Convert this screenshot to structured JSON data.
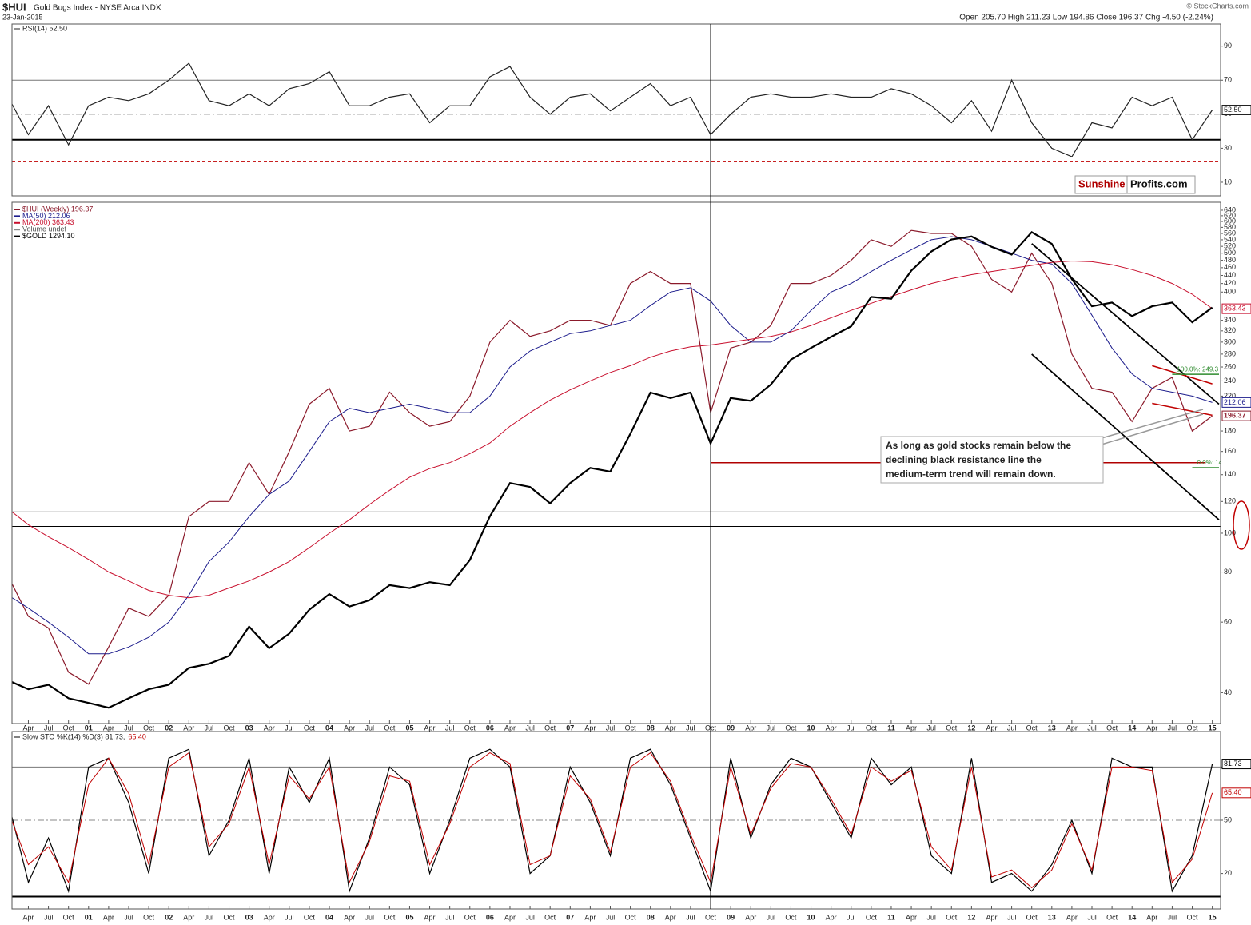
{
  "header": {
    "title": "$HUI",
    "subtitle": "Gold Bugs Index - NYSE Arca INDX",
    "date": "23-Jan-2015",
    "ohlc": "Open 205.70 High 211.23 Low 194.86 Close 196.37 Chg -4.50 (-2.24%)",
    "credit": "© StockCharts.com",
    "logo": [
      "Sunshine",
      "Profits.com"
    ],
    "note": [
      "As long as gold stocks remain below the",
      "declining black resistance line the",
      "medium-term trend will remain down."
    ]
  },
  "chart_data": [
    {
      "type": "line",
      "ylim": [
        2,
        103
      ],
      "yticks": [
        10,
        30,
        50,
        70,
        90
      ],
      "hlines": [
        {
          "value": 70,
          "color": "#777777",
          "style": "solid"
        },
        {
          "value": 50,
          "color": "#888888",
          "style": "dashdot"
        },
        {
          "value": 35,
          "color": "#000000",
          "style": "thick"
        },
        {
          "value": 22,
          "color": "#c00000",
          "style": "dashed"
        }
      ],
      "series": [
        {
          "name": "RSI(14) 52.50",
          "color": "#222222",
          "end_label": "52.50",
          "values": [
            60,
            38,
            55,
            32,
            55,
            60,
            58,
            62,
            70,
            80,
            58,
            55,
            62,
            55,
            65,
            68,
            75,
            55,
            55,
            60,
            62,
            45,
            55,
            55,
            72,
            78,
            60,
            50,
            60,
            62,
            52,
            60,
            68,
            55,
            60,
            38,
            50,
            60,
            62,
            60,
            60,
            62,
            60,
            60,
            65,
            62,
            55,
            45,
            58,
            40,
            70,
            45,
            30,
            25,
            45,
            42,
            60,
            55,
            60,
            35,
            52.5
          ]
        }
      ]
    },
    {
      "type": "line",
      "log": true,
      "ylim": [
        33.5,
        670
      ],
      "y2lim": [
        244,
        1973
      ],
      "xlim": [
        "1999-12",
        "2015-02"
      ],
      "vline": "2008-10",
      "yticks": [
        40,
        60,
        80,
        100,
        120,
        140,
        160,
        180,
        220,
        240,
        260,
        280,
        300,
        320,
        340,
        400,
        420,
        440,
        460,
        480,
        500,
        520,
        540,
        560,
        580,
        600,
        620,
        640
      ],
      "x": [
        "2000-01",
        "2000-04",
        "2000-07",
        "2000-10",
        "2001-01",
        "2001-04",
        "2001-07",
        "2001-10",
        "2002-01",
        "2002-04",
        "2002-07",
        "2002-10",
        "2003-01",
        "2003-04",
        "2003-07",
        "2003-10",
        "2004-01",
        "2004-04",
        "2004-07",
        "2004-10",
        "2005-01",
        "2005-04",
        "2005-07",
        "2005-10",
        "2006-01",
        "2006-04",
        "2006-07",
        "2006-10",
        "2007-01",
        "2007-04",
        "2007-07",
        "2007-10",
        "2008-01",
        "2008-04",
        "2008-07",
        "2008-10",
        "2009-01",
        "2009-04",
        "2009-07",
        "2009-10",
        "2010-01",
        "2010-04",
        "2010-07",
        "2010-10",
        "2011-01",
        "2011-04",
        "2011-07",
        "2011-10",
        "2012-01",
        "2012-04",
        "2012-07",
        "2012-10",
        "2013-01",
        "2013-04",
        "2013-07",
        "2013-10",
        "2014-01",
        "2014-04",
        "2014-07",
        "2014-10",
        "2015-01"
      ],
      "xticks": [
        {
          "value": "2000-04",
          "label": "Apr"
        },
        {
          "value": "2000-07",
          "label": "Jul"
        },
        {
          "value": "2000-10",
          "label": "Oct"
        },
        {
          "value": "2001-01",
          "label": "01"
        },
        {
          "value": "2001-04",
          "label": "Apr"
        },
        {
          "value": "2001-07",
          "label": "Jul"
        },
        {
          "value": "2001-10",
          "label": "Oct"
        },
        {
          "value": "2002-01",
          "label": "02"
        },
        {
          "value": "2002-04",
          "label": "Apr"
        },
        {
          "value": "2002-07",
          "label": "Jul"
        },
        {
          "value": "2002-10",
          "label": "Oct"
        },
        {
          "value": "2003-01",
          "label": "03"
        },
        {
          "value": "2003-04",
          "label": "Apr"
        },
        {
          "value": "2003-07",
          "label": "Jul"
        },
        {
          "value": "2003-10",
          "label": "Oct"
        },
        {
          "value": "2004-01",
          "label": "04"
        },
        {
          "value": "2004-04",
          "label": "Apr"
        },
        {
          "value": "2004-07",
          "label": "Jul"
        },
        {
          "value": "2004-10",
          "label": "Oct"
        },
        {
          "value": "2005-01",
          "label": "05"
        },
        {
          "value": "2005-04",
          "label": "Apr"
        },
        {
          "value": "2005-07",
          "label": "Jul"
        },
        {
          "value": "2005-10",
          "label": "Oct"
        },
        {
          "value": "2006-01",
          "label": "06"
        },
        {
          "value": "2006-04",
          "label": "Apr"
        },
        {
          "value": "2006-07",
          "label": "Jul"
        },
        {
          "value": "2006-10",
          "label": "Oct"
        },
        {
          "value": "2007-01",
          "label": "07"
        },
        {
          "value": "2007-04",
          "label": "Apr"
        },
        {
          "value": "2007-07",
          "label": "Jul"
        },
        {
          "value": "2007-10",
          "label": "Oct"
        },
        {
          "value": "2008-01",
          "label": "08"
        },
        {
          "value": "2008-04",
          "label": "Apr"
        },
        {
          "value": "2008-07",
          "label": "Jul"
        },
        {
          "value": "2008-10",
          "label": "Oct"
        },
        {
          "value": "2009-01",
          "label": "09"
        },
        {
          "value": "2009-04",
          "label": "Apr"
        },
        {
          "value": "2009-07",
          "label": "Jul"
        },
        {
          "value": "2009-10",
          "label": "Oct"
        },
        {
          "value": "2010-01",
          "label": "10"
        },
        {
          "value": "2010-04",
          "label": "Apr"
        },
        {
          "value": "2010-07",
          "label": "Jul"
        },
        {
          "value": "2010-10",
          "label": "Oct"
        },
        {
          "value": "2011-01",
          "label": "11"
        },
        {
          "value": "2011-04",
          "label": "Apr"
        },
        {
          "value": "2011-07",
          "label": "Jul"
        },
        {
          "value": "2011-10",
          "label": "Oct"
        },
        {
          "value": "2012-01",
          "label": "12"
        },
        {
          "value": "2012-04",
          "label": "Apr"
        },
        {
          "value": "2012-07",
          "label": "Jul"
        },
        {
          "value": "2012-10",
          "label": "Oct"
        },
        {
          "value": "2013-01",
          "label": "13"
        },
        {
          "value": "2013-04",
          "label": "Apr"
        },
        {
          "value": "2013-07",
          "label": "Jul"
        },
        {
          "value": "2013-10",
          "label": "Oct"
        },
        {
          "value": "2014-01",
          "label": "14"
        },
        {
          "value": "2014-04",
          "label": "Apr"
        },
        {
          "value": "2014-07",
          "label": "Jul"
        },
        {
          "value": "2014-10",
          "label": "Oct"
        },
        {
          "value": "2015-01",
          "label": "15"
        }
      ],
      "hlines": [
        {
          "value": 113,
          "color": "#000000",
          "style": "solid"
        },
        {
          "value": 104,
          "color": "#000000",
          "style": "solid"
        },
        {
          "value": 94,
          "color": "#000000",
          "style": "solid"
        }
      ],
      "segments": [
        {
          "x": [
            "2008-10",
            "2014-12"
          ],
          "y": [
            150,
            150
          ],
          "color": "#b00000"
        },
        {
          "x": [
            "2012-10",
            "2015-02"
          ],
          "y": [
            528,
            210
          ],
          "color": "#000000"
        },
        {
          "x": [
            "2012-10",
            "2015-02"
          ],
          "y": [
            280,
            108
          ],
          "color": "#000000"
        },
        {
          "x": [
            "2014-04",
            "2015-01"
          ],
          "y": [
            262,
            236
          ],
          "color": "#c00000"
        },
        {
          "x": [
            "2014-04",
            "2015-01"
          ],
          "y": [
            211,
            197
          ],
          "color": "#c00000"
        },
        {
          "x": [
            "2014-07",
            "2015-02"
          ],
          "y": [
            249.3,
            249.3
          ],
          "color": "#2e8b2e",
          "label": "100.0%: 249.3"
        },
        {
          "x": [
            "2014-10",
            "2015-02"
          ],
          "y": [
            145.75,
            145.75
          ],
          "color": "#2e8b2e",
          "label": "0.0%: 145.75"
        }
      ],
      "legend_extra": "Volume undef",
      "series": [
        {
          "name": "$HUI (Weekly) 196.37",
          "color": "#8b1a2b",
          "end_label": "196.37",
          "values": [
            78,
            62,
            58,
            45,
            42,
            52,
            65,
            62,
            70,
            110,
            120,
            120,
            150,
            125,
            160,
            210,
            230,
            180,
            185,
            225,
            200,
            185,
            190,
            220,
            300,
            340,
            310,
            320,
            340,
            340,
            330,
            420,
            450,
            420,
            420,
            200,
            290,
            300,
            330,
            420,
            420,
            440,
            480,
            540,
            520,
            570,
            560,
            560,
            520,
            430,
            400,
            500,
            420,
            280,
            230,
            225,
            190,
            230,
            245,
            180,
            196.37
          ]
        },
        {
          "name": "MA(50) 212.06",
          "color": "#1c1c8c",
          "end_label": "212.06",
          "values": [
            70,
            65,
            60,
            55,
            50,
            50,
            52,
            55,
            60,
            70,
            85,
            95,
            110,
            125,
            135,
            160,
            190,
            205,
            200,
            205,
            210,
            205,
            200,
            200,
            220,
            260,
            285,
            300,
            315,
            320,
            330,
            340,
            370,
            400,
            410,
            380,
            330,
            300,
            300,
            320,
            360,
            400,
            420,
            450,
            480,
            510,
            540,
            550,
            540,
            520,
            500,
            480,
            470,
            420,
            350,
            290,
            250,
            230,
            225,
            220,
            212.06
          ]
        },
        {
          "name": "MA(200) 363.43",
          "color": "#c8102e",
          "end_label": "363.43",
          "values": [
            115,
            105,
            98,
            92,
            86,
            80,
            76,
            72,
            70,
            69,
            70,
            73,
            76,
            80,
            85,
            92,
            100,
            108,
            118,
            128,
            138,
            145,
            150,
            158,
            168,
            185,
            200,
            215,
            228,
            240,
            252,
            262,
            275,
            285,
            292,
            295,
            300,
            305,
            310,
            318,
            330,
            345,
            360,
            375,
            390,
            405,
            420,
            432,
            442,
            450,
            458,
            466,
            474,
            478,
            476,
            468,
            455,
            440,
            420,
            395,
            363.43
          ]
        },
        {
          "name": "$GOLD 1294.10",
          "color": "#000000",
          "axis": "y2",
          "values": [
            290,
            280,
            285,
            270,
            265,
            260,
            270,
            280,
            285,
            305,
            310,
            320,
            360,
            330,
            350,
            385,
            410,
            390,
            400,
            425,
            420,
            430,
            425,
            470,
            560,
            640,
            630,
            590,
            640,
            680,
            670,
            780,
            920,
            900,
            920,
            750,
            900,
            890,
            950,
            1050,
            1100,
            1150,
            1200,
            1350,
            1340,
            1500,
            1620,
            1700,
            1720,
            1650,
            1600,
            1750,
            1670,
            1450,
            1300,
            1320,
            1250,
            1300,
            1320,
            1220,
            1294.1
          ]
        }
      ]
    },
    {
      "type": "line",
      "title": "Slow STO %K(14) %D(3) 81.73,",
      "ylim": [
        0,
        100
      ],
      "yticks": [
        20,
        50,
        80
      ],
      "hlines": [
        {
          "value": 80,
          "color": "#777777",
          "style": "solid"
        },
        {
          "value": 50,
          "color": "#888888",
          "style": "dashdot"
        },
        {
          "value": 7,
          "color": "#000000",
          "style": "thick"
        }
      ],
      "series": [
        {
          "color": "#000000",
          "end_label": "81.73",
          "values": [
            60,
            15,
            40,
            10,
            80,
            85,
            60,
            20,
            85,
            90,
            30,
            50,
            85,
            20,
            80,
            60,
            85,
            10,
            40,
            80,
            70,
            20,
            50,
            85,
            90,
            80,
            20,
            30,
            80,
            60,
            30,
            85,
            90,
            70,
            40,
            10,
            85,
            40,
            70,
            85,
            80,
            60,
            40,
            85,
            70,
            80,
            30,
            20,
            85,
            15,
            20,
            10,
            25,
            50,
            20,
            85,
            80,
            80,
            10,
            30,
            81.73
          ]
        },
        {
          "color": "#c00000",
          "end_label": "65.40",
          "values": [
            55,
            25,
            35,
            15,
            70,
            85,
            65,
            25,
            80,
            88,
            35,
            48,
            80,
            25,
            75,
            62,
            80,
            15,
            38,
            75,
            72,
            25,
            48,
            80,
            88,
            82,
            25,
            30,
            75,
            62,
            32,
            80,
            88,
            72,
            42,
            15,
            80,
            42,
            68,
            82,
            80,
            62,
            42,
            80,
            72,
            78,
            35,
            22,
            80,
            18,
            22,
            12,
            22,
            48,
            22,
            80,
            80,
            78,
            15,
            28,
            65.4
          ]
        }
      ]
    }
  ]
}
